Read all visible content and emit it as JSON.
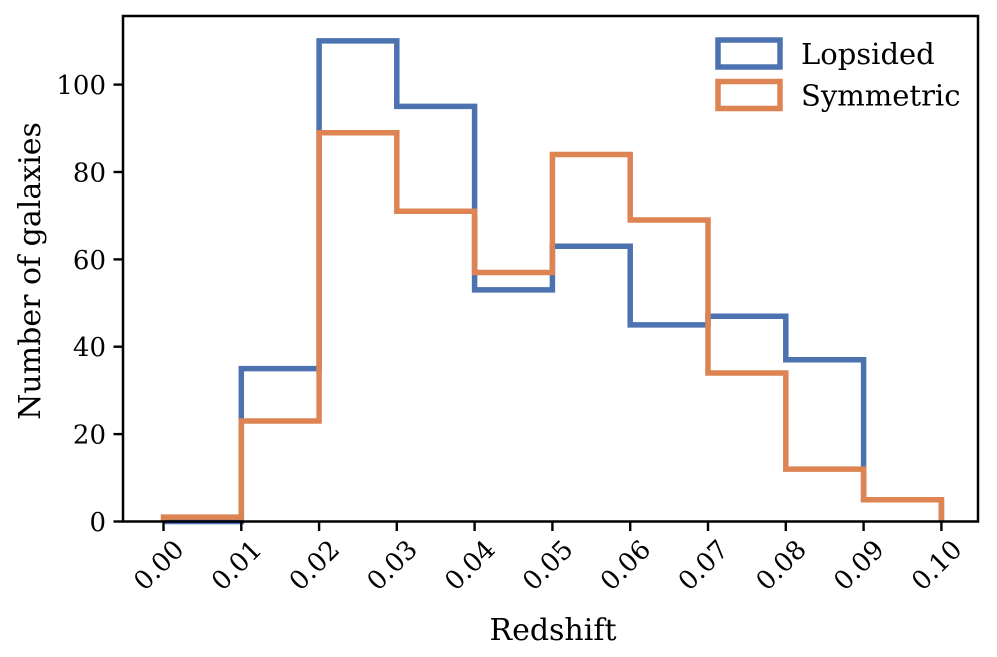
{
  "chart_data": {
    "type": "bar",
    "histtype": "step",
    "title": "",
    "xlabel": "Redshift",
    "ylabel": "Number of galaxies",
    "bin_edges": [
      0.0,
      0.01,
      0.02,
      0.03,
      0.04,
      0.05,
      0.06,
      0.07,
      0.08,
      0.09,
      0.1
    ],
    "series": [
      {
        "name": "Lopsided",
        "color": "#4C72B0",
        "values": [
          0,
          35,
          110,
          95,
          53,
          63,
          45,
          47,
          37,
          5
        ]
      },
      {
        "name": "Symmetric",
        "color": "#DD8452",
        "values": [
          1,
          23,
          89,
          71,
          57,
          84,
          69,
          34,
          12,
          5
        ]
      }
    ],
    "x_tick_labels": [
      "0.00",
      "0.01",
      "0.02",
      "0.03",
      "0.04",
      "0.05",
      "0.06",
      "0.07",
      "0.08",
      "0.09",
      "0.10"
    ],
    "y_ticks": [
      0,
      20,
      40,
      60,
      80,
      100
    ],
    "xlim": [
      -0.0052,
      0.1047
    ],
    "ylim": [
      0,
      115.7
    ],
    "grid": false,
    "legend": {
      "position": "upper right",
      "frame": false
    },
    "axes_color": "#000000",
    "background_color": "#FFFFFF"
  }
}
